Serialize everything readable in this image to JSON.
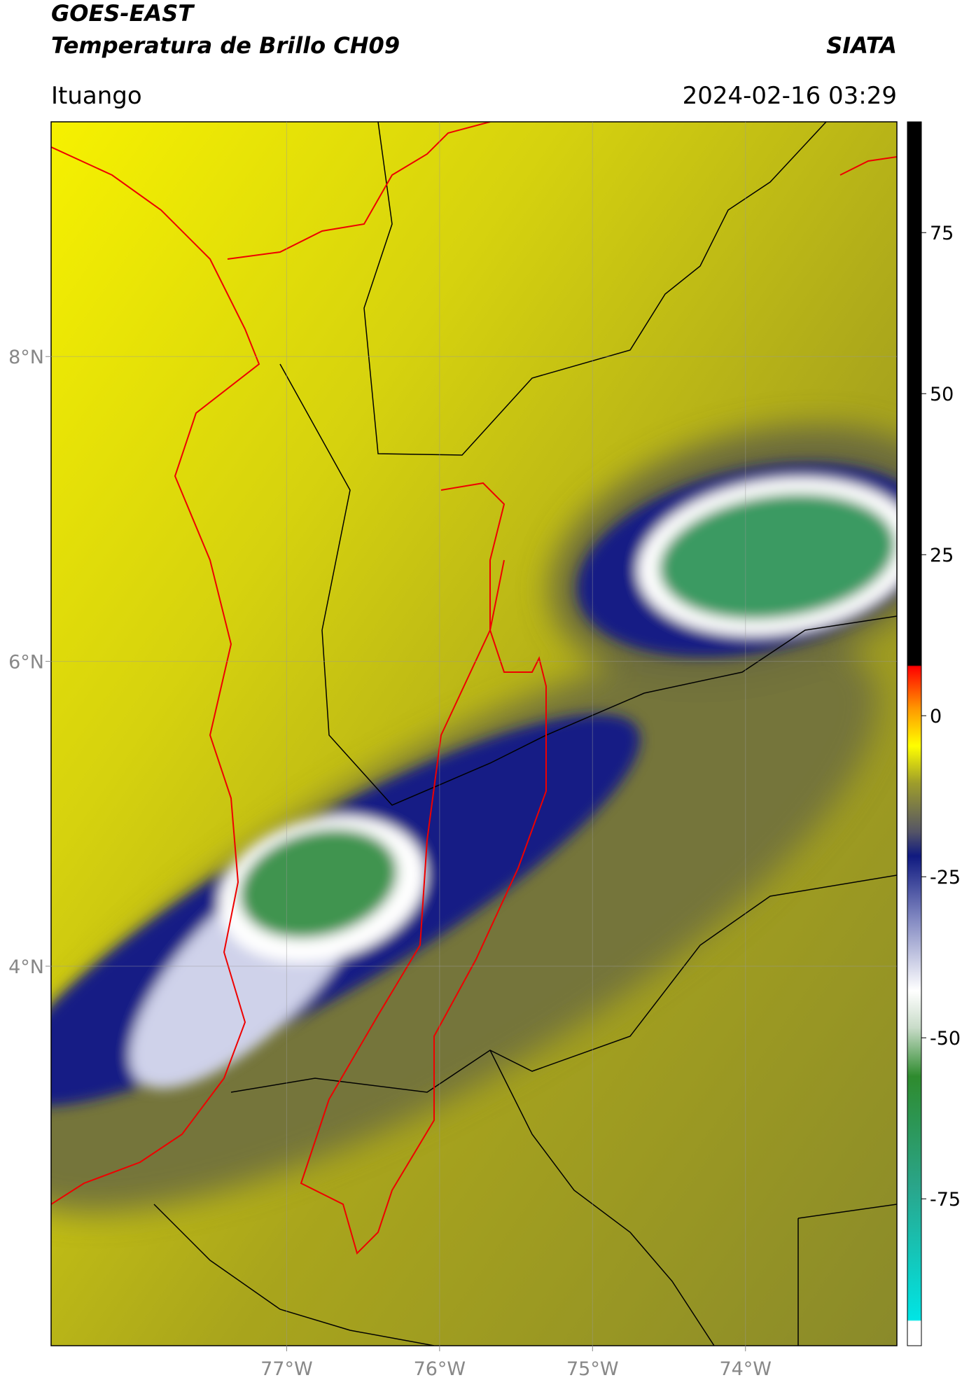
{
  "header": {
    "title": "GOES-EAST",
    "subtitle": "Temperatura de Brillo CH09",
    "source": "SIATA",
    "location": "Ituango",
    "datetime": "2024-02-16 03:29"
  },
  "map": {
    "xlim": [
      -78.54,
      -73.01
    ],
    "ylim": [
      1.51,
      9.54
    ],
    "xticks": [
      {
        "value": -77,
        "label": "77°W"
      },
      {
        "value": -76,
        "label": "76°W"
      },
      {
        "value": -75,
        "label": "75°W"
      },
      {
        "value": -74,
        "label": "74°W"
      }
    ],
    "yticks": [
      {
        "value": 4,
        "label": "4°N"
      },
      {
        "value": 6,
        "label": "6°N"
      },
      {
        "value": 8,
        "label": "8°N"
      }
    ],
    "grid": true
  },
  "colorbar": {
    "lim": [
      -97.8,
      92.2
    ],
    "ticks": [
      -75,
      -50,
      -25,
      0,
      25,
      50,
      75
    ]
  }
}
